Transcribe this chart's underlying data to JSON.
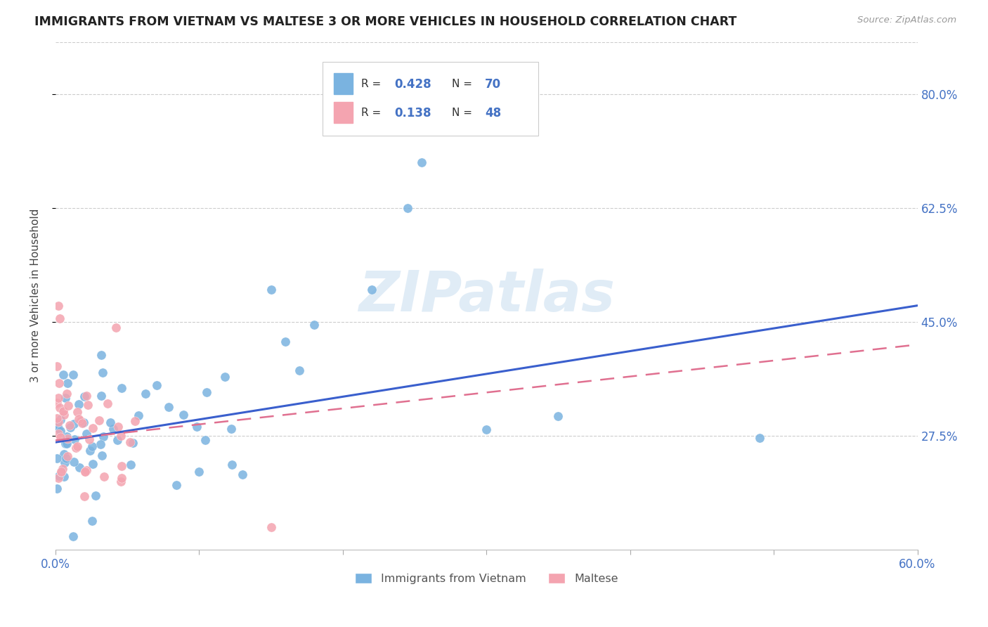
{
  "title": "IMMIGRANTS FROM VIETNAM VS MALTESE 3 OR MORE VEHICLES IN HOUSEHOLD CORRELATION CHART",
  "source": "Source: ZipAtlas.com",
  "ylabel": "3 or more Vehicles in Household",
  "xlim": [
    0.0,
    0.6
  ],
  "ylim": [
    0.1,
    0.88
  ],
  "yticks": [
    0.275,
    0.45,
    0.625,
    0.8
  ],
  "yticklabels": [
    "27.5%",
    "45.0%",
    "62.5%",
    "80.0%"
  ],
  "xtick_positions": [
    0.0,
    0.1,
    0.2,
    0.3,
    0.4,
    0.5,
    0.6
  ],
  "color_vietnam": "#7ab3e0",
  "color_maltese": "#f4a4b0",
  "color_trendline_blue": "#3a5fcd",
  "color_trendline_pink": "#e07090",
  "watermark": "ZIPatlas",
  "r_vietnam": 0.428,
  "n_vietnam": 70,
  "r_maltese": 0.138,
  "n_maltese": 48,
  "viet_trend_x0": 0.0,
  "viet_trend_y0": 0.265,
  "viet_trend_x1": 0.6,
  "viet_trend_y1": 0.475,
  "malt_trend_x0": 0.0,
  "malt_trend_y0": 0.268,
  "malt_trend_x1": 0.6,
  "malt_trend_y1": 0.415
}
